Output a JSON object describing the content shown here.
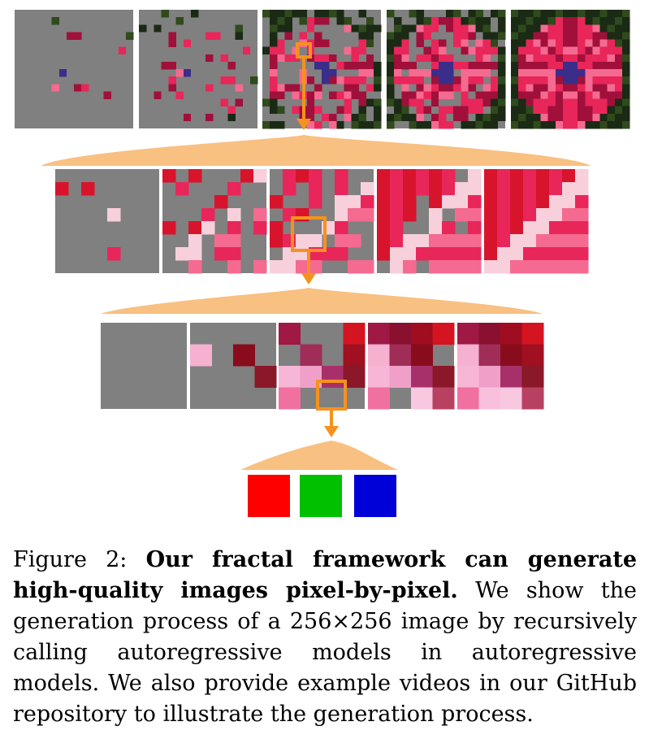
{
  "palette": {
    "gray": "#808080",
    "dark": "#1a2a14",
    "green": "#2f4a1c",
    "petal": "#e8265a",
    "petal_light": "#f56a90",
    "petal_dark": "#a0103a",
    "crimson": "#d8142c",
    "center": "#3a2e8a",
    "highlight": "#f7d0dc",
    "orange": "#f5921e",
    "bracket": "#f8c081",
    "rgb": [
      "#ff0000",
      "#00c000",
      "#0000d8"
    ]
  },
  "caption": {
    "figure_label": "Figure 2:",
    "bold_text": "Our fractal framework can generate high-quality images pixel-by-pixel.",
    "body_text": "We show the generation process of a 256×256 image by recursively calling autoregressive models in autoregressive models. We also provide example videos in our GitHub repository to illustrate the generation process."
  }
}
